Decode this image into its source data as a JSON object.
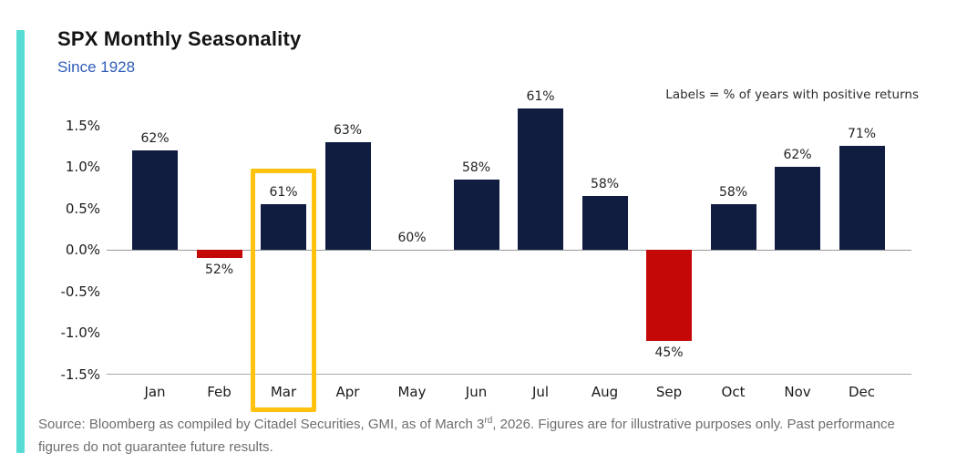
{
  "chart_data": {
    "type": "bar",
    "title": "SPX Monthly Seasonality",
    "subtitle": "Since 1928",
    "annotation": "Labels = % of years with positive returns",
    "categories": [
      "Jan",
      "Feb",
      "Mar",
      "Apr",
      "May",
      "Jun",
      "Jul",
      "Aug",
      "Sep",
      "Oct",
      "Nov",
      "Dec"
    ],
    "values": [
      1.2,
      -0.1,
      0.55,
      1.3,
      0.0,
      0.85,
      1.7,
      0.65,
      -1.1,
      0.55,
      1.0,
      1.25
    ],
    "bar_labels": [
      "62%",
      "52%",
      "61%",
      "63%",
      "60%",
      "58%",
      "61%",
      "58%",
      "45%",
      "58%",
      "62%",
      "71%"
    ],
    "bar_label_meaning": "% of years with positive returns",
    "xlabel": "",
    "ylabel": "",
    "y_ticks": [
      "1.5%",
      "1.0%",
      "0.5%",
      "0.0%",
      "-0.5%",
      "-1.0%",
      "-1.5%"
    ],
    "ylim": [
      -1.5,
      1.75
    ],
    "grid": "off",
    "legend_position": "top-right",
    "highlight": {
      "category": "Mar",
      "color": "#ffc20e"
    },
    "colors": {
      "positive": "#111c41",
      "negative": "#c40707",
      "accent_bar": "#56dcd3",
      "subtitle": "#2f5cb9"
    }
  },
  "source": {
    "prefix": "Source: Bloomberg as compiled by Citadel Securities, GMI, as of March 3",
    "superscript": "rd",
    "suffix": ", 2026. Figures are for illustrative purposes only. Past performance figures do not guarantee future results."
  }
}
